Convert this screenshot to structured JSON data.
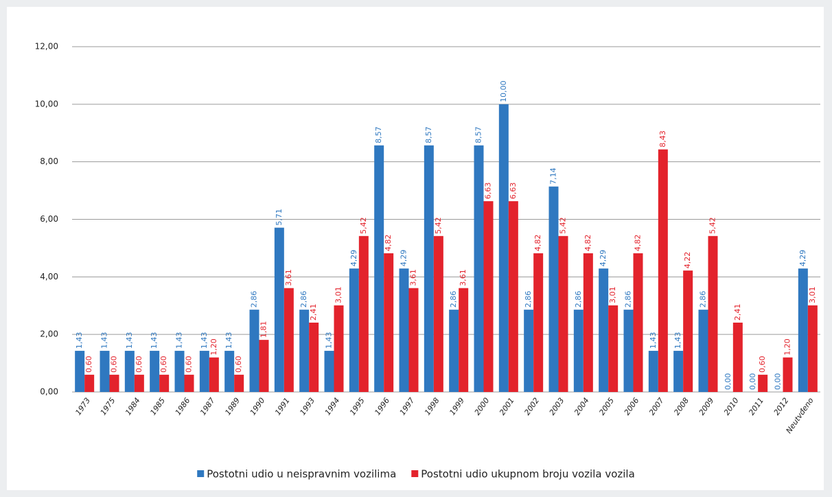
{
  "chart_data": {
    "type": "bar",
    "categories": [
      "1973",
      "1975",
      "1984",
      "1985",
      "1986",
      "1987",
      "1989",
      "1990",
      "1991",
      "1993",
      "1994",
      "1995",
      "1996",
      "1997",
      "1998",
      "1999",
      "2000",
      "2001",
      "2002",
      "2003",
      "2004",
      "2005",
      "2006",
      "2007",
      "2008",
      "2009",
      "2010",
      "2011",
      "2012",
      "Neutvđeno"
    ],
    "series": [
      {
        "name": "Postotni udio u neispravnim vozilima",
        "color": "#2f78c0",
        "values": [
          1.43,
          1.43,
          1.43,
          1.43,
          1.43,
          1.43,
          1.43,
          2.86,
          5.71,
          2.86,
          1.43,
          4.29,
          8.57,
          4.29,
          8.57,
          2.86,
          8.57,
          10.0,
          2.86,
          7.14,
          2.86,
          4.29,
          2.86,
          1.43,
          1.43,
          2.86,
          0.0,
          0.0,
          0.0,
          4.29
        ],
        "value_labels": [
          "1,43",
          "1,43",
          "1,43",
          "1,43",
          "1,43",
          "1,43",
          "1,43",
          "2,86",
          "5,71",
          "2,86",
          "1,43",
          "4,29",
          "8,57",
          "4,29",
          "8,57",
          "2,86",
          "8,57",
          "10,00",
          "2,86",
          "7,14",
          "2,86",
          "4,29",
          "2,86",
          "1,43",
          "1,43",
          "2,86",
          "0,00",
          "0,00",
          "0,00",
          "4,29"
        ]
      },
      {
        "name": "Postotni udio ukupnom broju vozila vozila",
        "color": "#e3232c",
        "values": [
          0.6,
          0.6,
          0.6,
          0.6,
          0.6,
          1.2,
          0.6,
          1.81,
          3.61,
          2.41,
          3.01,
          5.42,
          4.82,
          3.61,
          5.42,
          3.61,
          6.63,
          6.63,
          4.82,
          5.42,
          4.82,
          3.01,
          4.82,
          8.43,
          4.22,
          5.42,
          2.41,
          0.6,
          1.2,
          3.01
        ],
        "value_labels": [
          "0,60",
          "0,60",
          "0,60",
          "0,60",
          "0,60",
          "1,20",
          "0,60",
          "1,81",
          "3,61",
          "2,41",
          "3,01",
          "5,42",
          "4,82",
          "3,61",
          "5,42",
          "3,61",
          "6,63",
          "6,63",
          "4,82",
          "5,42",
          "4,82",
          "3,01",
          "4,82",
          "8,43",
          "4,22",
          "5,42",
          "2,41",
          "0,60",
          "1,20",
          "3,01"
        ]
      }
    ],
    "ylim": [
      0,
      12
    ],
    "yticks": [
      {
        "value": 0,
        "label": "0,00"
      },
      {
        "value": 2,
        "label": "2,00"
      },
      {
        "value": 4,
        "label": "4,00"
      },
      {
        "value": 6,
        "label": "6,00"
      },
      {
        "value": 8,
        "label": "8,00"
      },
      {
        "value": 10,
        "label": "10,00"
      },
      {
        "value": 12,
        "label": "12,00"
      }
    ],
    "grid": true,
    "legend": "bottom"
  }
}
